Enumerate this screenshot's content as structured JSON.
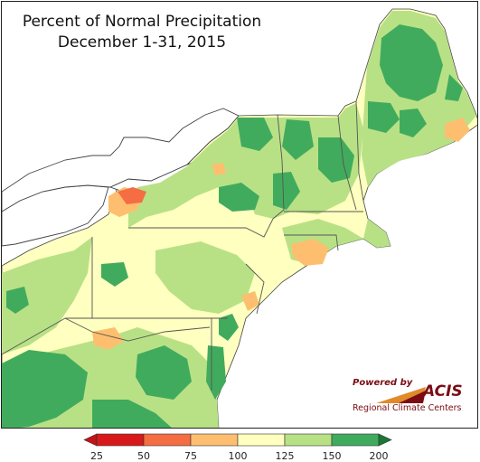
{
  "title": {
    "line1": "Percent of Normal Precipitation",
    "line2": "December 1-31, 2015"
  },
  "logo": {
    "powered_by": "Powered by",
    "acis": "ACIS",
    "regional": "Regional Climate Centers"
  },
  "legend": {
    "ticks": [
      "25",
      "50",
      "75",
      "100",
      "125",
      "150",
      "200"
    ],
    "bins": [
      {
        "range": "<25",
        "color": "#c4121a"
      },
      {
        "range": "25-50",
        "color": "#d7191c"
      },
      {
        "range": "50-75",
        "color": "#f46d43"
      },
      {
        "range": "75-100",
        "color": "#fdbf6f"
      },
      {
        "range": "100-125",
        "color": "#ffffbf"
      },
      {
        "range": "125-150",
        "color": "#b8e186"
      },
      {
        "range": "150-200",
        "color": "#41ab5d"
      },
      {
        "range": ">200",
        "color": "#1a7837"
      }
    ]
  },
  "colors": {
    "water": "#ffffff",
    "boundary": "#555555",
    "land_base": "#ffffbf"
  }
}
